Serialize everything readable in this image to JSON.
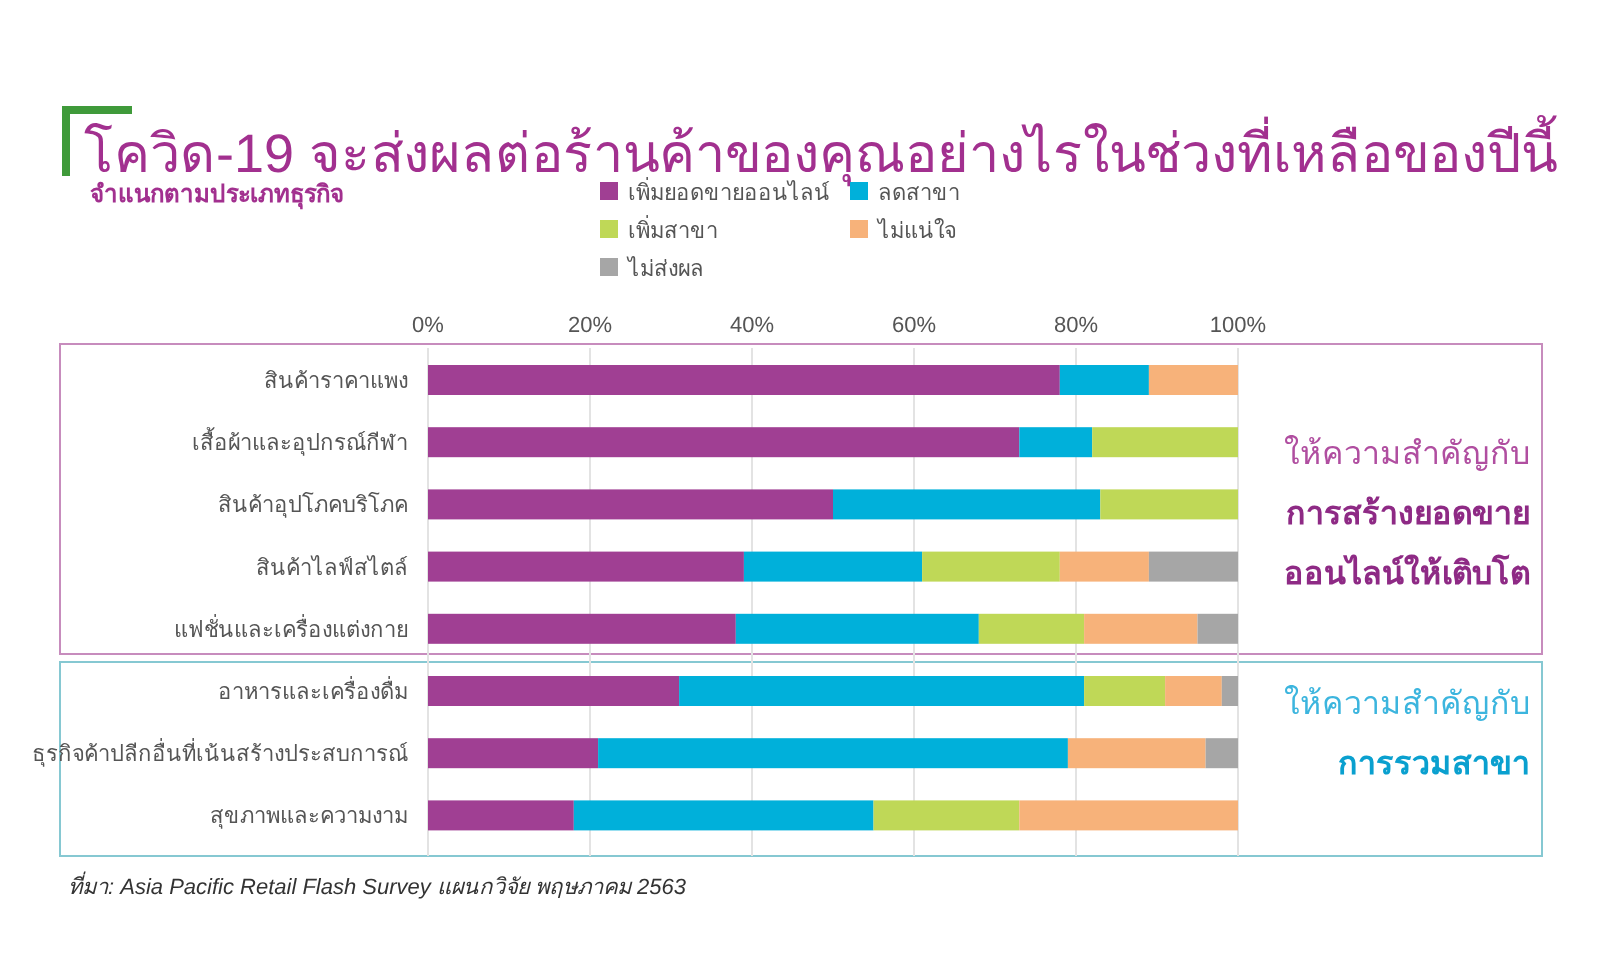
{
  "chart_data": {
    "type": "bar",
    "orientation": "horizontal",
    "stacked": true,
    "title": "โควิด-19 จะส่งผลต่อร้านค้าของคุณอย่างไรในช่วงที่เหลือของปีนี้",
    "subtitle": "จำแนกตามประเภทธุรกิจ",
    "categories": [
      "สินค้าราคาแพง",
      "เสื้อผ้าและอุปกรณ์กีฬา",
      "สินค้าอุปโภคบริโภค",
      "สินค้าไลฟ์สไตล์",
      "แฟชั่นและเครื่องแต่งกาย",
      "อาหารและเครื่องดื่ม",
      "ธุรกิจค้าปลีกอื่นที่เน้นสร้างประสบการณ์",
      "สุขภาพและความงาม"
    ],
    "series": [
      {
        "name": "เพิ่มยอดขายออนไลน์",
        "color": "#a03f93",
        "values": [
          78,
          73,
          50,
          39,
          38,
          31,
          21,
          18
        ]
      },
      {
        "name": "ลดสาขา",
        "color": "#00b0da",
        "values": [
          11,
          9,
          33,
          22,
          30,
          50,
          58,
          37
        ]
      },
      {
        "name": "เพิ่มสาขา",
        "color": "#bfd857",
        "values": [
          0,
          18,
          17,
          17,
          13,
          10,
          0,
          18
        ]
      },
      {
        "name": "ไม่แน่ใจ",
        "color": "#f7b27a",
        "values": [
          11,
          0,
          0,
          11,
          14,
          7,
          17,
          27
        ]
      },
      {
        "name": "ไม่ส่งผล",
        "color": "#a6a6a6",
        "values": [
          0,
          0,
          0,
          11,
          5,
          2,
          4,
          0
        ]
      }
    ],
    "xlim": [
      0,
      100
    ],
    "xticks": [
      {
        "value": 0,
        "label": "0%"
      },
      {
        "value": 20,
        "label": "20%"
      },
      {
        "value": 40,
        "label": "40%"
      },
      {
        "value": 60,
        "label": "60%"
      },
      {
        "value": 80,
        "label": "80%"
      },
      {
        "value": 100,
        "label": "100%"
      }
    ],
    "grid": "x",
    "legend": "top",
    "annotations": [
      "ให้ความสำคัญกับ",
      "การสร้างยอดขาย",
      "ออนไลน์ให้เติบโต",
      "ให้ความสำคัญกับ",
      "การรวมสาขา",
      "ที่มา: Asia Pacific Retail Flash Survey แผนกวิจัย พฤษภาคม 2563"
    ]
  }
}
